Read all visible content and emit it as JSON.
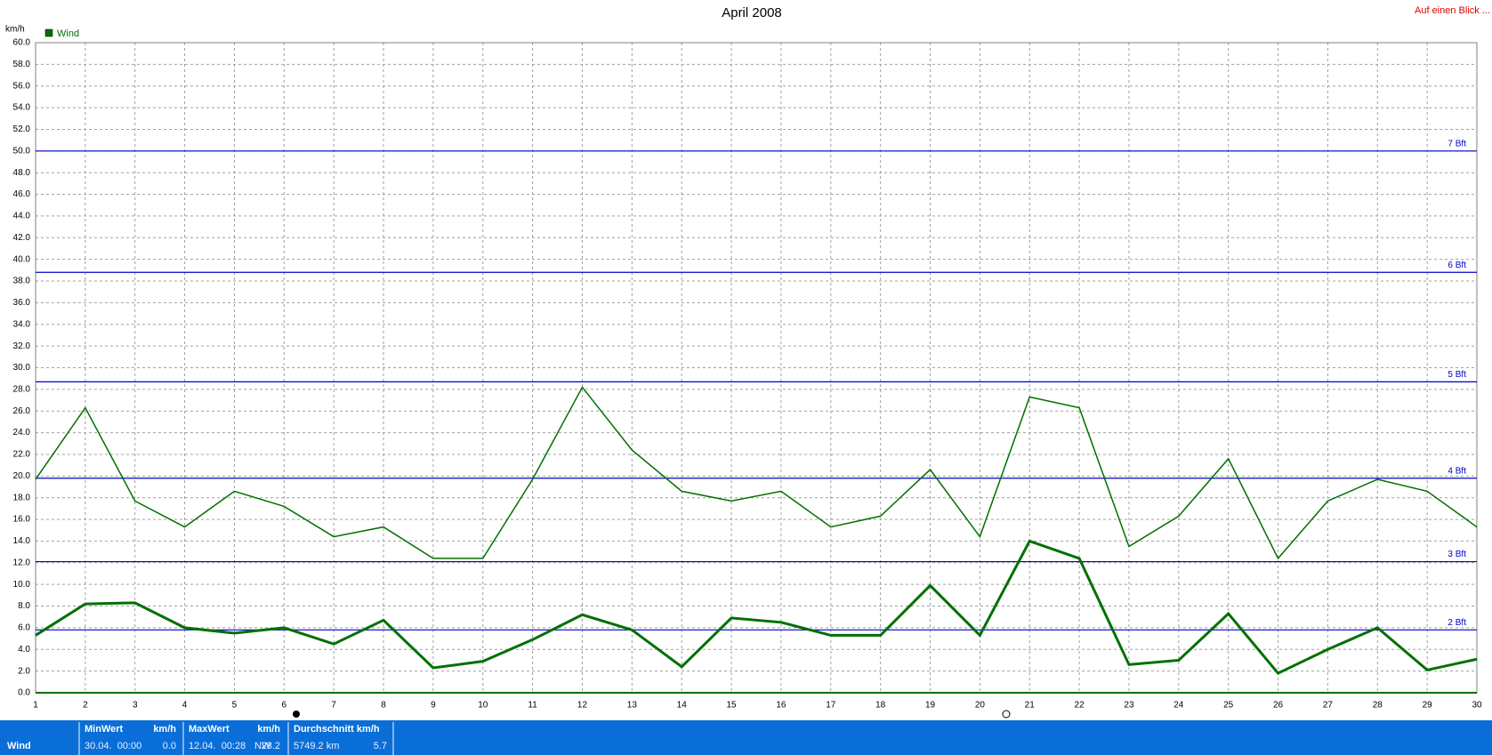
{
  "chart_data": {
    "type": "line",
    "title": "April 2008",
    "y_label": "km/h",
    "link": "Auf einen Blick ...",
    "x": [
      1,
      2,
      3,
      4,
      5,
      6,
      7,
      8,
      9,
      10,
      11,
      12,
      13,
      14,
      15,
      16,
      17,
      18,
      19,
      20,
      21,
      22,
      23,
      24,
      25,
      26,
      27,
      28,
      29,
      30
    ],
    "xlim": [
      1,
      30
    ],
    "xticks": [
      1,
      2,
      3,
      4,
      5,
      6,
      7,
      8,
      9,
      10,
      11,
      12,
      13,
      14,
      15,
      16,
      17,
      18,
      19,
      20,
      21,
      22,
      23,
      24,
      25,
      26,
      27,
      28,
      29,
      30
    ],
    "ylim": [
      0,
      60
    ],
    "yticks": [
      {
        "value": 0,
        "label": "0.0"
      },
      {
        "value": 2,
        "label": "2.0"
      },
      {
        "value": 4,
        "label": "4.0"
      },
      {
        "value": 6,
        "label": "6.0"
      },
      {
        "value": 8,
        "label": "8.0"
      },
      {
        "value": 10,
        "label": "10.0"
      },
      {
        "value": 12,
        "label": "12.0"
      },
      {
        "value": 14,
        "label": "14.0"
      },
      {
        "value": 16,
        "label": "16.0"
      },
      {
        "value": 18,
        "label": "18.0"
      },
      {
        "value": 20,
        "label": "20.0"
      },
      {
        "value": 22,
        "label": "22.0"
      },
      {
        "value": 24,
        "label": "24.0"
      },
      {
        "value": 26,
        "label": "26.0"
      },
      {
        "value": 28,
        "label": "28.0"
      },
      {
        "value": 30,
        "label": "30.0"
      },
      {
        "value": 32,
        "label": "32.0"
      },
      {
        "value": 34,
        "label": "34.0"
      },
      {
        "value": 36,
        "label": "36.0"
      },
      {
        "value": 38,
        "label": "38.0"
      },
      {
        "value": 40,
        "label": "40.0"
      },
      {
        "value": 42,
        "label": "42.0"
      },
      {
        "value": 44,
        "label": "44.0"
      },
      {
        "value": 46,
        "label": "46.0"
      },
      {
        "value": 48,
        "label": "48.0"
      },
      {
        "value": 50,
        "label": "50.0"
      },
      {
        "value": 52,
        "label": "52.0"
      },
      {
        "value": 54,
        "label": "54.0"
      },
      {
        "value": 56,
        "label": "56.0"
      },
      {
        "value": 58,
        "label": "58.0"
      },
      {
        "value": 60,
        "label": "60.0"
      }
    ],
    "grid": true,
    "series": [
      {
        "name": "Wind",
        "color": "#007000",
        "width": 1.5,
        "values": [
          19.7,
          26.3,
          17.7,
          15.3,
          18.6,
          17.2,
          14.4,
          15.3,
          12.4,
          12.4,
          19.7,
          28.2,
          22.4,
          18.6,
          17.7,
          18.6,
          15.3,
          16.3,
          20.6,
          14.4,
          27.3,
          26.3,
          13.5,
          16.3,
          21.6,
          12.4,
          17.7,
          19.7,
          18.6,
          15.3
        ]
      },
      {
        "color": "#007000",
        "width": 3,
        "values": [
          5.3,
          8.2,
          8.3,
          6.0,
          5.5,
          6.0,
          4.5,
          6.7,
          2.3,
          2.9,
          4.9,
          7.2,
          5.8,
          2.4,
          6.9,
          6.5,
          5.3,
          5.3,
          9.9,
          5.3,
          14.0,
          12.4,
          2.6,
          3.0,
          7.3,
          1.8,
          4.0,
          6.0,
          2.1,
          3.1
        ]
      }
    ],
    "reference_color": "#0000c8",
    "reference_lines": [
      {
        "value": 5.8,
        "label": "2 Bft"
      },
      {
        "value": 12.1,
        "label": "3 Bft"
      },
      {
        "value": 19.8,
        "label": "4 Bft"
      },
      {
        "value": 28.7,
        "label": "5 Bft"
      },
      {
        "value": 38.8,
        "label": "6 Bft"
      },
      {
        "value": 50.0,
        "label": "7 Bft"
      }
    ]
  },
  "footer": {
    "label": "Wind",
    "min": {
      "title": "MinWert",
      "unit": "km/h",
      "when": "30.04.  00:00",
      "value": "0.0"
    },
    "max": {
      "title": "MaxWert",
      "unit": "km/h",
      "when": "12.04.  00:28",
      "dir": "NW",
      "value": "28.2"
    },
    "avg": {
      "title": "Durchschnitt km/h",
      "when": "5749.2 km",
      "value": "5.7"
    }
  }
}
